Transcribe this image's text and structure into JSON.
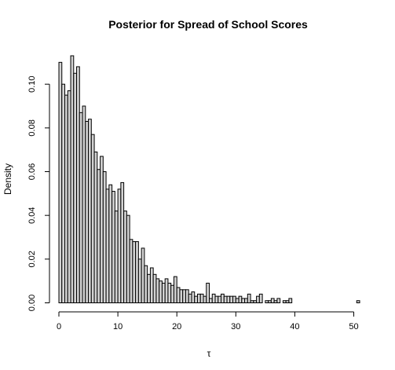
{
  "chart_data": {
    "type": "histogram",
    "title": "Posterior for Spread of School Scores",
    "xlabel": "τ",
    "ylabel": "Density",
    "xlim": [
      0,
      51
    ],
    "ylim": [
      0,
      0.113
    ],
    "bin_width": 0.5,
    "x_ticks": [
      0,
      10,
      20,
      30,
      40,
      50
    ],
    "y_ticks": [
      0.0,
      0.02,
      0.04,
      0.06,
      0.08,
      0.1
    ],
    "y_tick_labels": [
      "0.00",
      "0.02",
      "0.04",
      "0.06",
      "0.08",
      "0.10"
    ],
    "x_tick_labels": [
      "0",
      "10",
      "20",
      "30",
      "40",
      "50"
    ],
    "bar_fill": "#d3d3d3",
    "bar_stroke": "#000000",
    "densities": [
      0.11,
      0.1,
      0.095,
      0.097,
      0.113,
      0.105,
      0.108,
      0.087,
      0.09,
      0.083,
      0.084,
      0.077,
      0.069,
      0.061,
      0.067,
      0.06,
      0.052,
      0.054,
      0.051,
      0.042,
      0.052,
      0.055,
      0.042,
      0.04,
      0.029,
      0.028,
      0.028,
      0.02,
      0.025,
      0.017,
      0.013,
      0.016,
      0.013,
      0.011,
      0.01,
      0.009,
      0.011,
      0.009,
      0.008,
      0.012,
      0.007,
      0.006,
      0.006,
      0.006,
      0.004,
      0.005,
      0.003,
      0.004,
      0.004,
      0.003,
      0.009,
      0.002,
      0.004,
      0.003,
      0.003,
      0.004,
      0.003,
      0.003,
      0.003,
      0.003,
      0.002,
      0.003,
      0.002,
      0.002,
      0.004,
      0.001,
      0.001,
      0.003,
      0.004,
      0.0,
      0.001,
      0.001,
      0.002,
      0.001,
      0.002,
      0.0,
      0.001,
      0.001,
      0.002,
      0.0,
      0.0,
      0.0,
      0.0,
      0.0,
      0.0,
      0.0,
      0.0,
      0.0,
      0.0,
      0.0,
      0.0,
      0.0,
      0.0,
      0.0,
      0.0,
      0.0,
      0.0,
      0.0,
      0.0,
      0.0,
      0.0,
      0.001
    ]
  }
}
